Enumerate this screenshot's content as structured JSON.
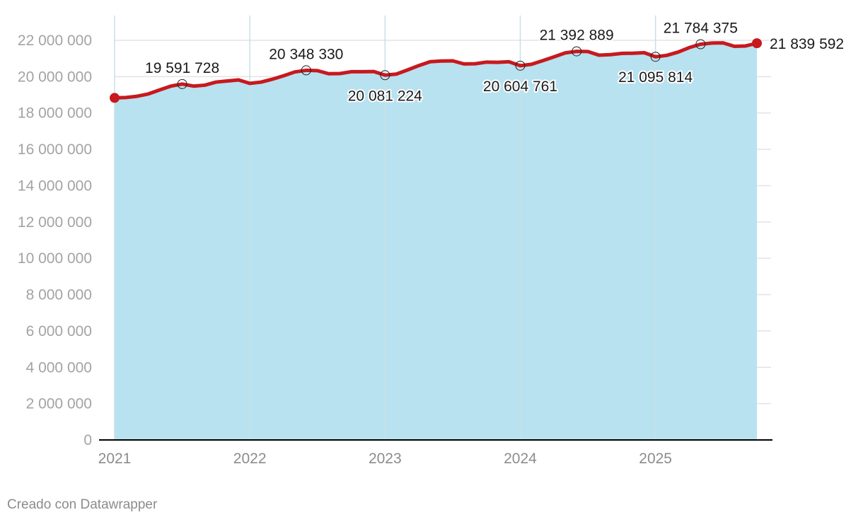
{
  "chart_data": {
    "type": "area",
    "title": "",
    "xlabel": "",
    "ylabel": "",
    "x_start": "2021-01",
    "x_end": "2025-10",
    "x_ticks": [
      "2021",
      "2022",
      "2023",
      "2024",
      "2025"
    ],
    "ylim": [
      0,
      22000000
    ],
    "y_ticks": [
      0,
      2000000,
      4000000,
      6000000,
      8000000,
      10000000,
      12000000,
      14000000,
      16000000,
      18000000,
      20000000,
      22000000
    ],
    "y_tick_labels": [
      "0",
      "2 000 000",
      "4 000 000",
      "6 000 000",
      "8 000 000",
      "10 000 000",
      "12 000 000",
      "14 000 000",
      "16 000 000",
      "18 000 000",
      "20 000 000",
      "22 000 000"
    ],
    "grid": true,
    "colors": {
      "line": "#c7191e",
      "area": "#b8e2f0",
      "grid": "#e3e3e3",
      "vgrid": "#c9dfe6",
      "axis": "#000000"
    },
    "series": [
      {
        "x": [
          "2021-01",
          "2021-02",
          "2021-03",
          "2021-04",
          "2021-05",
          "2021-06",
          "2021-07",
          "2021-08",
          "2021-09",
          "2021-10",
          "2021-11",
          "2021-12",
          "2022-01",
          "2022-02",
          "2022-03",
          "2022-04",
          "2022-05",
          "2022-06",
          "2022-07",
          "2022-08",
          "2022-09",
          "2022-10",
          "2022-11",
          "2022-12",
          "2023-01",
          "2023-02",
          "2023-03",
          "2023-04",
          "2023-05",
          "2023-06",
          "2023-07",
          "2023-08",
          "2023-09",
          "2023-10",
          "2023-11",
          "2023-12",
          "2024-01",
          "2024-02",
          "2024-03",
          "2024-04",
          "2024-05",
          "2024-06",
          "2024-07",
          "2024-08",
          "2024-09",
          "2024-10",
          "2024-11",
          "2024-12",
          "2025-01",
          "2025-02",
          "2025-03",
          "2025-04",
          "2025-05",
          "2025-06",
          "2025-07",
          "2025-08",
          "2025-09",
          "2025-10"
        ],
        "values": [
          18830000,
          18850000,
          18920000,
          19050000,
          19270000,
          19480000,
          19591728,
          19480000,
          19530000,
          19700000,
          19760000,
          19820000,
          19630000,
          19700000,
          19860000,
          20050000,
          20260000,
          20348330,
          20330000,
          20160000,
          20170000,
          20270000,
          20270000,
          20280000,
          20081224,
          20140000,
          20370000,
          20610000,
          20820000,
          20860000,
          20870000,
          20700000,
          20710000,
          20800000,
          20790000,
          20820000,
          20604761,
          20680000,
          20880000,
          21090000,
          21310000,
          21392889,
          21380000,
          21180000,
          21210000,
          21280000,
          21290000,
          21320000,
          21095814,
          21170000,
          21350000,
          21600000,
          21784375,
          21850000,
          21860000,
          21670000,
          21690000,
          21839592
        ]
      }
    ],
    "annotations": [
      {
        "x": "2021-07",
        "value": 19591728,
        "label": "19 591 728",
        "position": "above"
      },
      {
        "x": "2022-06",
        "value": 20348330,
        "label": "20 348 330",
        "position": "above"
      },
      {
        "x": "2023-01",
        "value": 20081224,
        "label": "20 081 224",
        "position": "below"
      },
      {
        "x": "2024-01",
        "value": 20604761,
        "label": "20 604 761",
        "position": "below"
      },
      {
        "x": "2024-06",
        "value": 21392889,
        "label": "21 392 889",
        "position": "above"
      },
      {
        "x": "2025-01",
        "value": 21095814,
        "label": "21 095 814",
        "position": "below"
      },
      {
        "x": "2025-05",
        "value": 21784375,
        "label": "21 784 375",
        "position": "above"
      },
      {
        "x": "2025-10",
        "value": 21839592,
        "label": "21 839 592",
        "position": "right"
      }
    ]
  },
  "footer": {
    "credit": "Creado con Datawrapper"
  }
}
